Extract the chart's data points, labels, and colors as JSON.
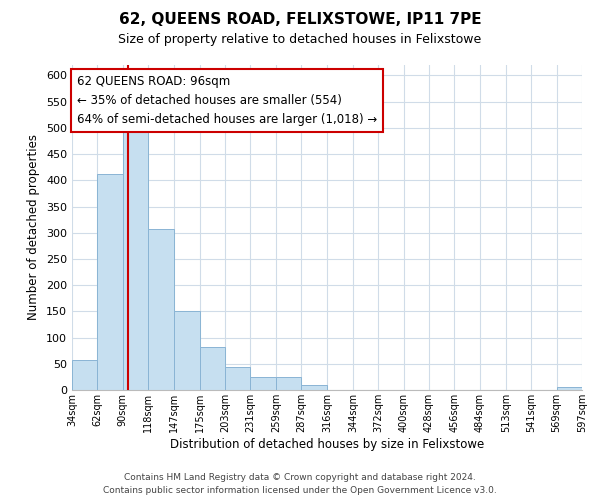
{
  "title": "62, QUEENS ROAD, FELIXSTOWE, IP11 7PE",
  "subtitle": "Size of property relative to detached houses in Felixstowe",
  "xlabel": "Distribution of detached houses by size in Felixstowe",
  "ylabel": "Number of detached properties",
  "bar_color": "#c6dff0",
  "bar_edge_color": "#8ab4d4",
  "background_color": "#ffffff",
  "grid_color": "#d0dce8",
  "bins": [
    34,
    62,
    90,
    118,
    147,
    175,
    203,
    231,
    259,
    287,
    316,
    344,
    372,
    400,
    428,
    456,
    484,
    513,
    541,
    569,
    597
  ],
  "counts": [
    57,
    412,
    496,
    308,
    150,
    82,
    44,
    25,
    25,
    10,
    0,
    0,
    0,
    0,
    0,
    0,
    0,
    0,
    0,
    5
  ],
  "tick_labels": [
    "34sqm",
    "62sqm",
    "90sqm",
    "118sqm",
    "147sqm",
    "175sqm",
    "203sqm",
    "231sqm",
    "259sqm",
    "287sqm",
    "316sqm",
    "344sqm",
    "372sqm",
    "400sqm",
    "428sqm",
    "456sqm",
    "484sqm",
    "513sqm",
    "541sqm",
    "569sqm",
    "597sqm"
  ],
  "property_size": 96,
  "property_line_color": "#cc0000",
  "annotation_text_line1": "62 QUEENS ROAD: 96sqm",
  "annotation_text_line2": "← 35% of detached houses are smaller (554)",
  "annotation_text_line3": "64% of semi-detached houses are larger (1,018) →",
  "annotation_box_color": "#ffffff",
  "annotation_box_edge": "#cc0000",
  "ylim": [
    0,
    620
  ],
  "yticks": [
    0,
    50,
    100,
    150,
    200,
    250,
    300,
    350,
    400,
    450,
    500,
    550,
    600
  ],
  "footer_line1": "Contains HM Land Registry data © Crown copyright and database right 2024.",
  "footer_line2": "Contains public sector information licensed under the Open Government Licence v3.0."
}
